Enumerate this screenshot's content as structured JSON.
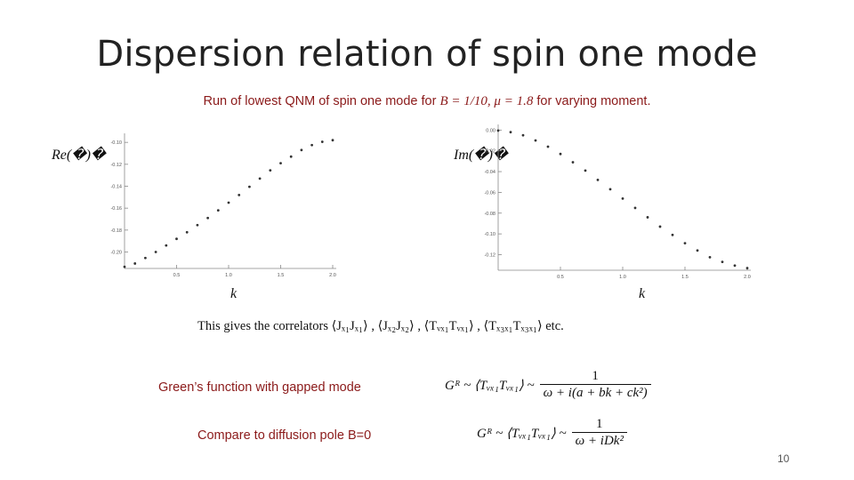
{
  "slide": {
    "title": "Dispersion relation of spin one mode",
    "subtitle_prefix": "Run of lowest QNM of spin one mode for ",
    "subtitle_math": "B = 1/10, μ = 1.8",
    "subtitle_suffix": " for varying moment.",
    "correlators_line": "This gives the correlators ⟨Jₓ₁Jₓ₁⟩ , ⟨Jₓ₂Jₓ₂⟩ , ⟨Tᵥₓ₁Tᵥₓ₁⟩ , ⟨Tₓ₃ₓ₁Tₓ₃ₓ₁⟩ etc.",
    "gapped_label": "Green’s function with gapped mode",
    "gapped_formula_lhs": "Gᴿ ~ ⟨Tᵥₓ₁Tᵥₓ₁⟩ ~",
    "gapped_formula_num": "1",
    "gapped_formula_den": "ω + i(a + bk + ck²)",
    "diffusion_label": "Compare to diffusion pole B=0",
    "diffusion_formula_lhs": "Gᴿ ~ ⟨Tᵥₓ₁Tᵥₓ₁⟩ ~",
    "diffusion_formula_num": "1",
    "diffusion_formula_den": "ω + iDk²",
    "page_number": "10",
    "accent_color": "#8b1a1a"
  },
  "chart_data": [
    {
      "type": "scatter",
      "ylabel": "Re(�)�",
      "xlabel": "k",
      "xlim": [
        0.0,
        2.0
      ],
      "ylim": [
        -0.215,
        -0.095
      ],
      "xticks": [
        0.5,
        1.0,
        1.5,
        2.0
      ],
      "xtick_labels": [
        "0.5",
        "1.0",
        "1.5",
        "2.0"
      ],
      "yticks": [
        -0.1,
        -0.12,
        -0.14,
        -0.16,
        -0.18,
        -0.2
      ],
      "ytick_labels": [
        "-0.10",
        "-0.12",
        "-0.14",
        "-0.16",
        "-0.18",
        "-0.20"
      ],
      "grid": false,
      "x": [
        0.0,
        0.1,
        0.2,
        0.3,
        0.4,
        0.5,
        0.6,
        0.7,
        0.8,
        0.9,
        1.0,
        1.1,
        1.2,
        1.3,
        1.4,
        1.5,
        1.6,
        1.7,
        1.8,
        1.9,
        2.0
      ],
      "y": [
        -0.2135,
        -0.2105,
        -0.2055,
        -0.2,
        -0.194,
        -0.188,
        -0.182,
        -0.1755,
        -0.169,
        -0.162,
        -0.155,
        -0.148,
        -0.1405,
        -0.133,
        -0.1255,
        -0.119,
        -0.113,
        -0.107,
        -0.1025,
        -0.0995,
        -0.098
      ]
    },
    {
      "type": "scatter",
      "ylabel": "Im(�)�",
      "xlabel": "k",
      "xlim": [
        0.0,
        2.0
      ],
      "ylim": [
        -0.135,
        0.002
      ],
      "xticks": [
        0.5,
        1.0,
        1.5,
        2.0
      ],
      "xtick_labels": [
        "0.5",
        "1.0",
        "1.5",
        "2.0"
      ],
      "yticks": [
        0.0,
        -0.02,
        -0.04,
        -0.06,
        -0.08,
        -0.1,
        -0.12
      ],
      "ytick_labels": [
        "0.00",
        "-0.02",
        "-0.04",
        "-0.06",
        "-0.08",
        "-0.10",
        "-0.12"
      ],
      "grid": false,
      "x": [
        0.0,
        0.1,
        0.2,
        0.3,
        0.4,
        0.5,
        0.6,
        0.7,
        0.8,
        0.9,
        1.0,
        1.1,
        1.2,
        1.3,
        1.4,
        1.5,
        1.6,
        1.7,
        1.8,
        1.9,
        2.0
      ],
      "y": [
        -0.0005,
        -0.002,
        -0.005,
        -0.01,
        -0.016,
        -0.023,
        -0.031,
        -0.039,
        -0.048,
        -0.057,
        -0.066,
        -0.075,
        -0.084,
        -0.093,
        -0.101,
        -0.109,
        -0.116,
        -0.1225,
        -0.127,
        -0.1305,
        -0.133
      ]
    }
  ]
}
